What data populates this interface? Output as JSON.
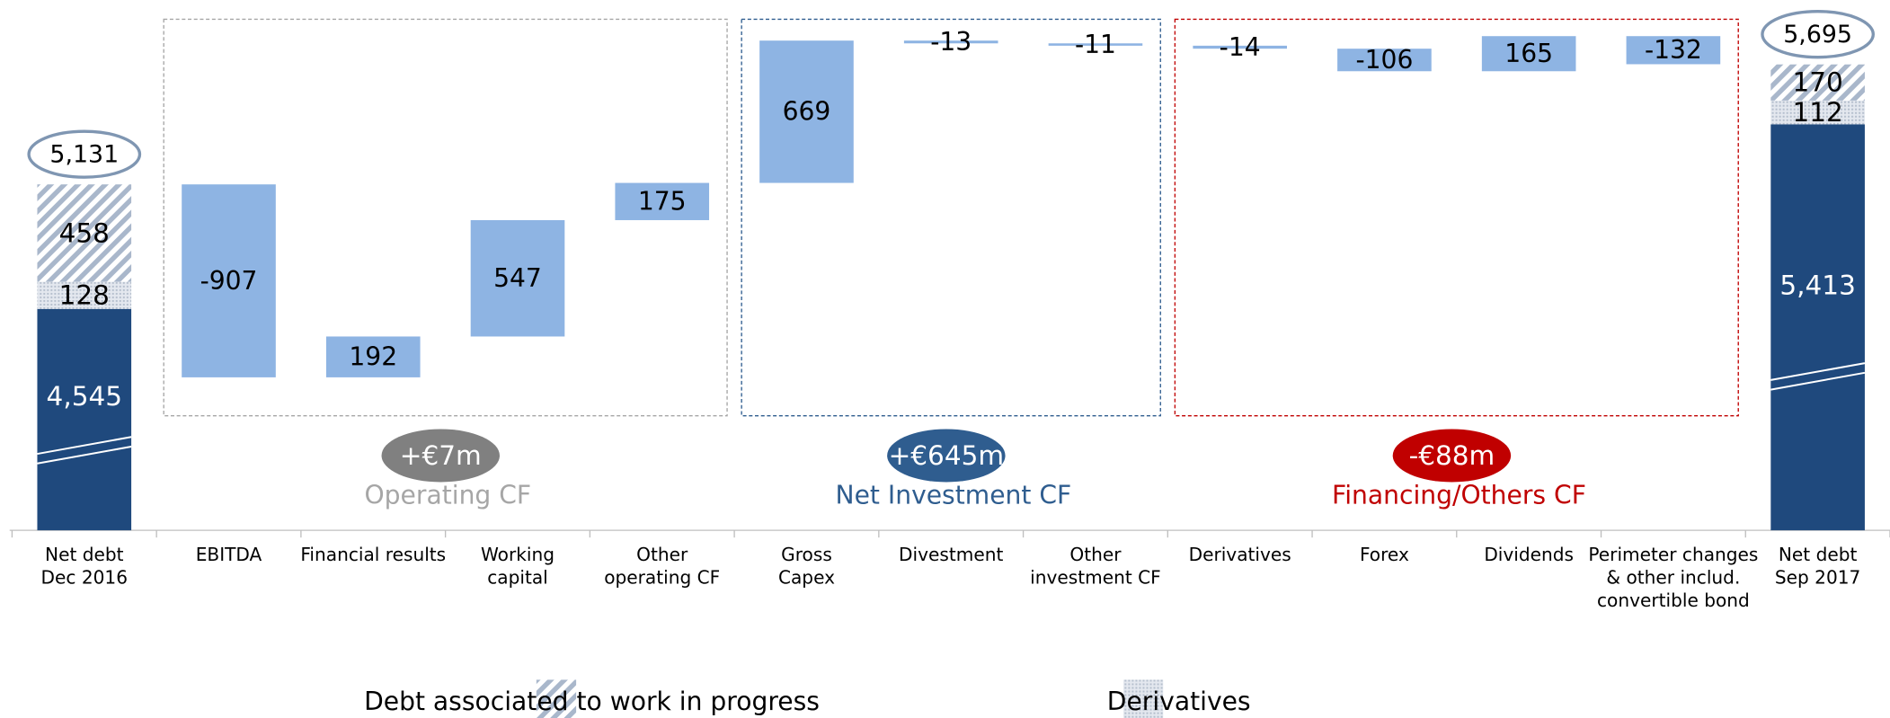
{
  "chart_data": {
    "type": "waterfall",
    "categories": [
      [
        "Net debt",
        "Dec 2016"
      ],
      [
        "EBITDA"
      ],
      [
        "Financial results"
      ],
      [
        "Working",
        "capital"
      ],
      [
        "Other",
        "operating CF"
      ],
      [
        "Gross",
        "Capex"
      ],
      [
        "Divestment"
      ],
      [
        "Other",
        "investment CF"
      ],
      [
        "Derivatives"
      ],
      [
        "Forex"
      ],
      [
        "Dividends"
      ],
      [
        "Perimeter changes",
        "& other includ.",
        "convertible bond"
      ],
      [
        "Net debt",
        "Sep 2017"
      ]
    ],
    "deltas": {
      "color": "#8eb4e3",
      "values": [
        null,
        -907,
        192,
        547,
        175,
        669,
        -13,
        -11,
        -14,
        -106,
        165,
        -132,
        null
      ]
    },
    "totals": {
      "values": [
        5131,
        null,
        null,
        null,
        null,
        null,
        null,
        null,
        null,
        null,
        null,
        null,
        5695
      ],
      "value_labels": [
        "5,131",
        null,
        null,
        null,
        null,
        null,
        null,
        null,
        null,
        null,
        null,
        null,
        "5,695"
      ]
    },
    "net_debt_base": {
      "color": "#1f497d",
      "values": [
        4545,
        null,
        null,
        null,
        null,
        null,
        null,
        null,
        null,
        null,
        null,
        null,
        5413
      ],
      "value_labels": [
        "4,545",
        null,
        null,
        null,
        null,
        null,
        null,
        null,
        null,
        null,
        null,
        null,
        "5,413"
      ]
    },
    "series": [
      {
        "name": "Debt associated to work in progress",
        "pattern": "hatch",
        "values": [
          458,
          null,
          null,
          null,
          null,
          null,
          null,
          null,
          null,
          null,
          null,
          null,
          170
        ]
      },
      {
        "name": "Derivatives",
        "pattern": "dots",
        "values": [
          128,
          null,
          null,
          null,
          null,
          null,
          null,
          null,
          null,
          null,
          null,
          null,
          112
        ]
      }
    ],
    "groups": [
      {
        "badge": "+€7m",
        "label": "Operating CF",
        "color": "#a6a6a6",
        "badge_color": "#808080"
      },
      {
        "badge": "+€645m",
        "label": "Net Investment CF",
        "color": "#2f5d8f",
        "badge_color": "#2f5d8f"
      },
      {
        "badge": "-€88m",
        "label": "Financing/Others CF",
        "color": "#c00000",
        "badge_color": "#c00000"
      }
    ]
  }
}
